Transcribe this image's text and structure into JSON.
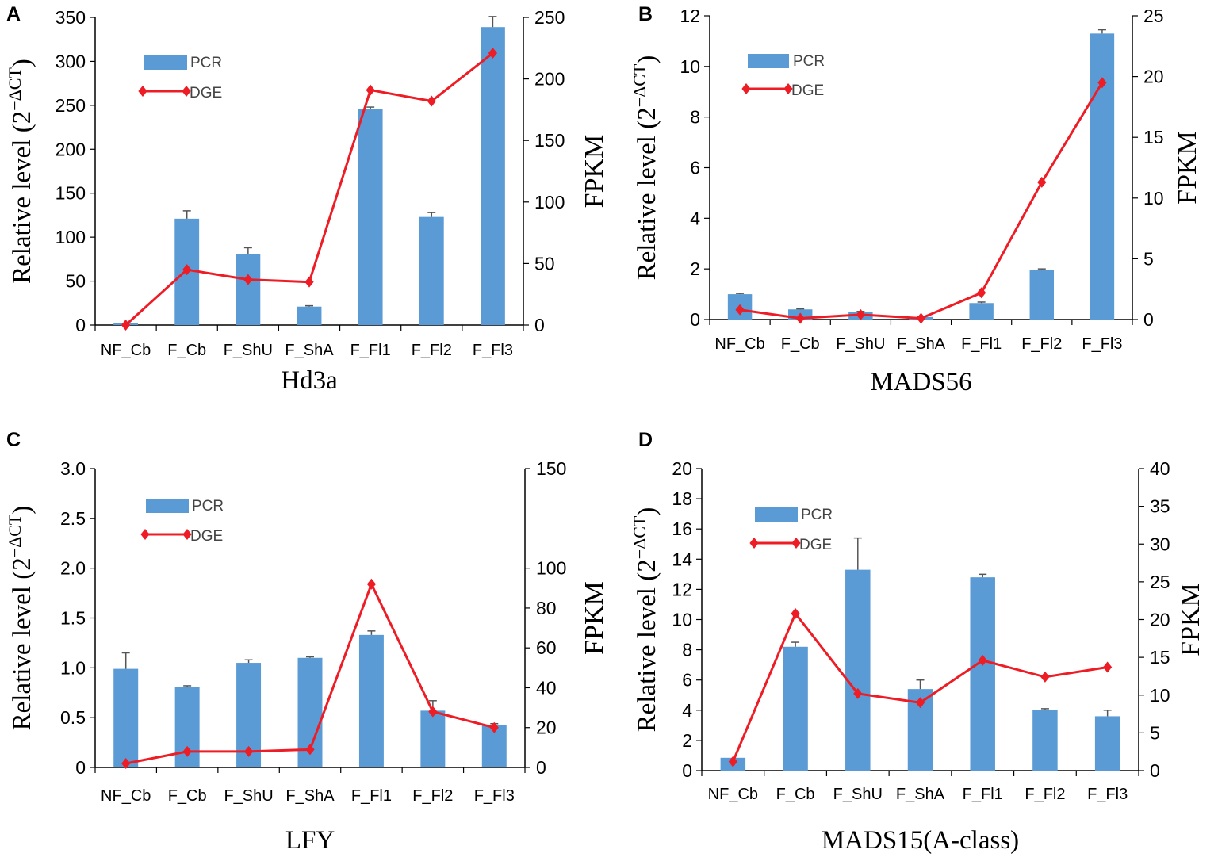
{
  "chart_data": [
    {
      "type": "bar+line",
      "panel": "A",
      "title": "Hd3a",
      "ylabel": "Relative level (2",
      "ylabel_sup": "−ΔCT",
      "ylabel_close": ")",
      "y2label": "FPKM",
      "categories": [
        "NF_Cb",
        "F_Cb",
        "F_ShU",
        "F_ShA",
        "F_Fl1",
        "F_Fl2",
        "F_Fl3"
      ],
      "ylim": [
        0,
        350
      ],
      "yticks": [
        0,
        50,
        100,
        150,
        200,
        250,
        300,
        350
      ],
      "ytick_labels": [
        "0",
        "50",
        "100",
        "150",
        "200",
        "250",
        "300",
        "350"
      ],
      "y2lim": [
        0,
        250
      ],
      "y2ticks": [
        0,
        50,
        100,
        150,
        200,
        250
      ],
      "y2tick_labels": [
        "0",
        "50",
        "100",
        "150",
        "200",
        "250"
      ],
      "legend": {
        "bar": "PCR",
        "line": "DGE",
        "location": "top-left"
      },
      "series": [
        {
          "name": "PCR",
          "kind": "bar",
          "axis": "left",
          "values": [
            2,
            121,
            81,
            21,
            246,
            123,
            339
          ],
          "errors": [
            0,
            9,
            7,
            1,
            2,
            5,
            12
          ]
        },
        {
          "name": "DGE",
          "kind": "line",
          "axis": "right",
          "values": [
            0,
            45,
            37,
            35,
            191,
            182,
            221
          ]
        }
      ]
    },
    {
      "type": "bar+line",
      "panel": "B",
      "title": "MADS56",
      "ylabel": "Relative level (2",
      "ylabel_sup": "−ΔCT",
      "ylabel_close": ")",
      "y2label": "FPKM",
      "categories": [
        "NF_Cb",
        "F_Cb",
        "F_ShU",
        "F_ShA",
        "F_Fl1",
        "F_Fl2",
        "F_Fl3"
      ],
      "ylim": [
        0,
        12
      ],
      "yticks": [
        0,
        2,
        4,
        6,
        8,
        10,
        12
      ],
      "ytick_labels": [
        "0",
        "2",
        "4",
        "6",
        "8",
        "10",
        "12"
      ],
      "y2lim": [
        0,
        25
      ],
      "y2ticks": [
        0,
        5,
        10,
        15,
        20,
        25
      ],
      "y2tick_labels": [
        "0",
        "5",
        "10",
        "15",
        "20",
        "25"
      ],
      "legend": {
        "bar": "PCR",
        "line": "DGE",
        "location": "top-left"
      },
      "series": [
        {
          "name": "PCR",
          "kind": "bar",
          "axis": "left",
          "values": [
            1.0,
            0.4,
            0.3,
            0.1,
            0.65,
            1.95,
            11.3
          ],
          "errors": [
            0.03,
            0.02,
            0.02,
            0.01,
            0.04,
            0.05,
            0.15
          ]
        },
        {
          "name": "DGE",
          "kind": "line",
          "axis": "right",
          "values": [
            0.8,
            0.1,
            0.4,
            0.1,
            2.2,
            11.3,
            19.5
          ]
        }
      ]
    },
    {
      "type": "bar+line",
      "panel": "C",
      "title": "LFY",
      "ylabel": "Relative level (2",
      "ylabel_sup": "−ΔCT",
      "ylabel_close": ")",
      "y2label": "FPKM",
      "categories": [
        "NF_Cb",
        "F_Cb",
        "F_ShU",
        "F_ShA",
        "F_Fl1",
        "F_Fl2",
        "F_Fl3"
      ],
      "ylim": [
        0,
        3.0
      ],
      "yticks": [
        0,
        0.5,
        1.0,
        1.5,
        2.0,
        2.5,
        3.0
      ],
      "ytick_labels": [
        "0",
        "0.5",
        "1.0",
        "1.5",
        "2.0",
        "2.5",
        "3.0"
      ],
      "y2lim": [
        0,
        150
      ],
      "y2ticks": [
        0,
        20,
        40,
        60,
        80,
        100,
        150
      ],
      "y2tick_labels": [
        "0",
        "20",
        "40",
        "60",
        "80",
        "100",
        "150"
      ],
      "legend": {
        "bar": "PCR",
        "line": "DGE",
        "location": "top-left"
      },
      "series": [
        {
          "name": "PCR",
          "kind": "bar",
          "axis": "left",
          "values": [
            0.99,
            0.81,
            1.05,
            1.1,
            1.33,
            0.57,
            0.43
          ],
          "errors": [
            0.16,
            0.01,
            0.03,
            0.01,
            0.04,
            0.1,
            0.01
          ]
        },
        {
          "name": "DGE",
          "kind": "line",
          "axis": "right",
          "values": [
            2,
            8,
            8,
            9,
            92,
            28,
            20
          ]
        }
      ]
    },
    {
      "type": "bar+line",
      "panel": "D",
      "title": "MADS15(A-class)",
      "ylabel": "Relative level (2",
      "ylabel_sup": "−ΔCT",
      "ylabel_close": ")",
      "y2label": "FPKM",
      "categories": [
        "NF_Cb",
        "F_Cb",
        "F_ShU",
        "F_ShA",
        "F_Fl1",
        "F_Fl2",
        "F_Fl3"
      ],
      "ylim": [
        0,
        20
      ],
      "yticks": [
        0,
        2,
        4,
        6,
        8,
        10,
        12,
        14,
        16,
        18,
        20
      ],
      "ytick_labels": [
        "0",
        "2",
        "4",
        "6",
        "8",
        "10",
        "12",
        "14",
        "16",
        "18",
        "20"
      ],
      "y2lim": [
        0,
        40
      ],
      "y2ticks": [
        0,
        5,
        10,
        15,
        20,
        25,
        30,
        35,
        40
      ],
      "y2tick_labels": [
        "0",
        "5",
        "10",
        "15",
        "20",
        "25",
        "30",
        "35",
        "40"
      ],
      "legend": {
        "bar": "PCR",
        "line": "DGE",
        "location": "top-left"
      },
      "series": [
        {
          "name": "PCR",
          "kind": "bar",
          "axis": "left",
          "values": [
            0.85,
            8.2,
            13.3,
            5.4,
            12.8,
            4.0,
            3.6
          ],
          "errors": [
            0,
            0.3,
            2.1,
            0.6,
            0.2,
            0.1,
            0.4
          ]
        },
        {
          "name": "DGE",
          "kind": "line",
          "axis": "right",
          "values": [
            1.2,
            20.8,
            10.2,
            9.0,
            14.6,
            12.4,
            13.7
          ]
        }
      ]
    }
  ]
}
